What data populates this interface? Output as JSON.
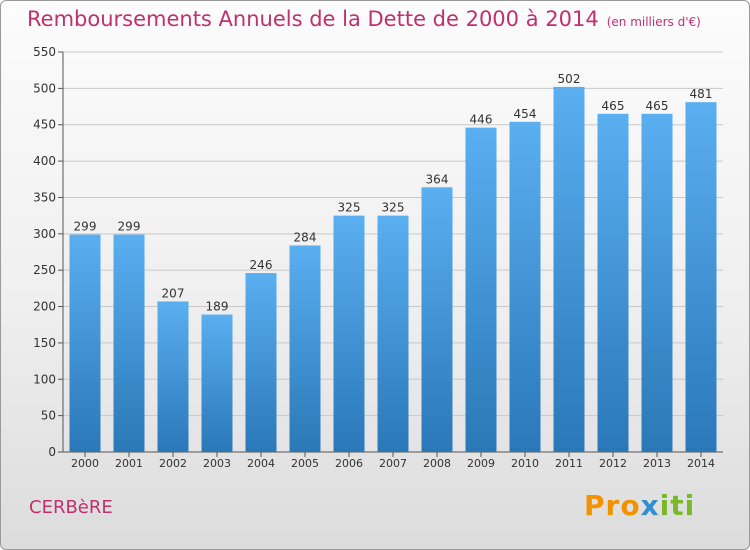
{
  "chart_data": {
    "type": "bar",
    "title": "Remboursements Annuels de la Dette de 2000 à 2014",
    "subtitle": "(en milliers d'€)",
    "categories": [
      "2000",
      "2001",
      "2002",
      "2003",
      "2004",
      "2005",
      "2006",
      "2007",
      "2008",
      "2009",
      "2010",
      "2011",
      "2012",
      "2013",
      "2014"
    ],
    "values": [
      299,
      299,
      207,
      189,
      246,
      284,
      325,
      325,
      364,
      446,
      454,
      502,
      465,
      465,
      481
    ],
    "ylim": [
      0,
      550
    ],
    "yticks": [
      0,
      50,
      100,
      150,
      200,
      250,
      300,
      350,
      400,
      450,
      500,
      550
    ],
    "xlabel": "",
    "ylabel": "",
    "grid": true,
    "colors": {
      "bar_top": "#5aaff0",
      "bar_bottom": "#2a78b8",
      "title": "#c0306e",
      "grid": "#c8c8c8"
    }
  },
  "commune": "CERBèRE",
  "logo": {
    "part1": "Pro",
    "part2": "x",
    "part3": "iti"
  }
}
